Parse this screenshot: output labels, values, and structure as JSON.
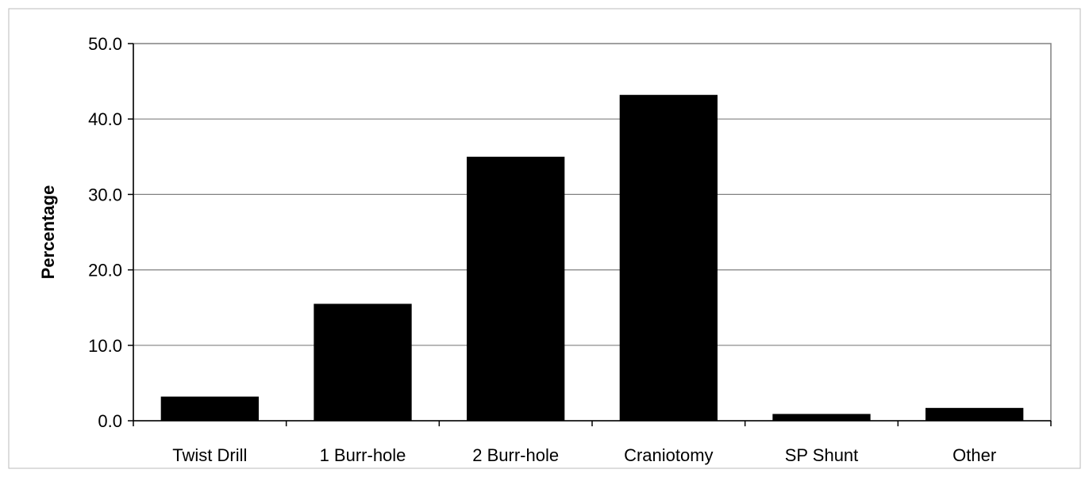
{
  "chart_data": {
    "type": "bar",
    "title": "",
    "xlabel": "",
    "ylabel": "Percentage",
    "categories": [
      "Twist Drill",
      "1 Burr-hole",
      "2 Burr-hole",
      "Craniotomy",
      "SP Shunt",
      "Other"
    ],
    "values": [
      3.2,
      15.5,
      35.0,
      43.2,
      0.9,
      1.7
    ],
    "ylim": [
      0,
      50
    ],
    "yticks": [
      "0.0",
      "10.0",
      "20.0",
      "30.0",
      "40.0",
      "50.0"
    ],
    "grid": "horizontal",
    "legend": "none",
    "colors": {
      "bar": "#000000",
      "grid": "#808080",
      "axis": "#000000"
    }
  }
}
